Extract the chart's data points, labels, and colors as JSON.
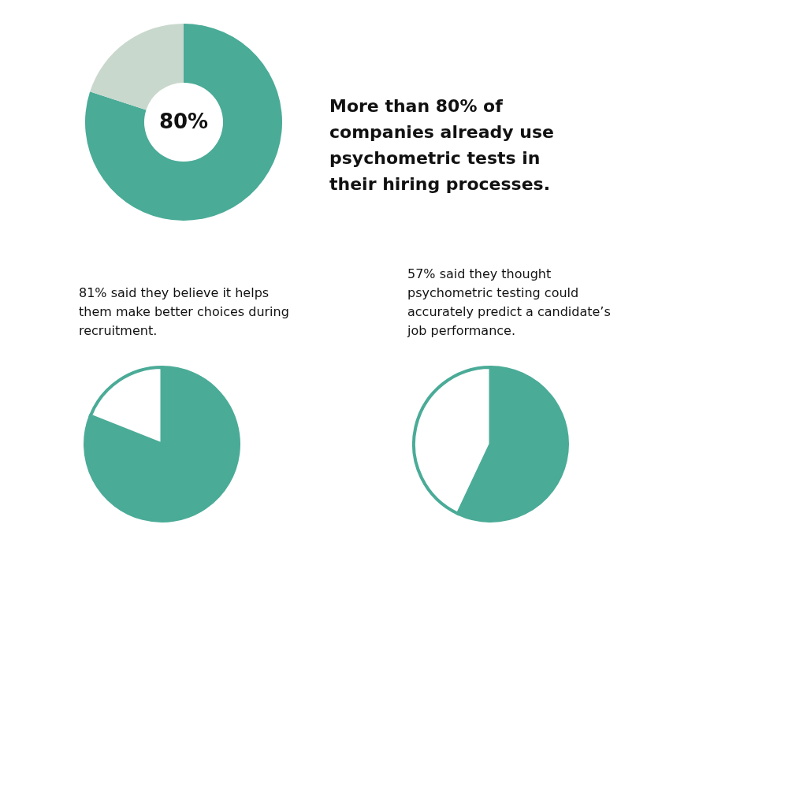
{
  "chart_data": [
    {
      "type": "donut",
      "title": "More than 80% of companies already use psychometric tests in their hiring processes.",
      "categories": [
        null,
        null
      ],
      "values": [
        80,
        20
      ],
      "colors": [
        "#4aab97",
        "#c9d8cd"
      ],
      "value_labels": [
        "80%",
        null
      ]
    },
    {
      "type": "pie",
      "title": "81% said they believe it helps them make better choices during recruitment.",
      "categories": [
        null,
        null
      ],
      "values": [
        81,
        19
      ],
      "colors": [
        "#4aab97",
        "#ffffff"
      ]
    },
    {
      "type": "pie",
      "title": "57% said they thought psychometric testing could accurately predict a candidate’s job performance.",
      "categories": [
        null,
        null
      ],
      "values": [
        57,
        43
      ],
      "colors": [
        "#4aab97",
        "#ffffff"
      ]
    }
  ]
}
